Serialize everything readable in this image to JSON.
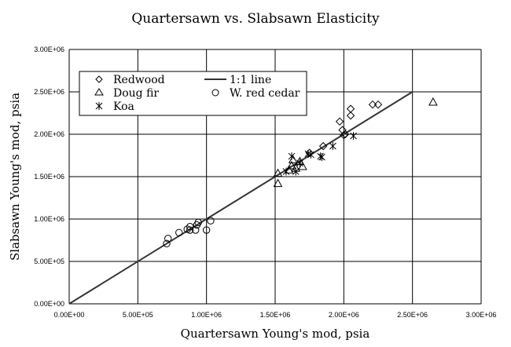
{
  "chart_data": {
    "type": "scatter",
    "title": "Quartersawn vs. Slabsawn Elasticity",
    "xlabel": "Quartersawn Young's mod, psia",
    "ylabel": "Slabsawn Young's mod, psia",
    "xlim": [
      0,
      3000000
    ],
    "ylim": [
      0,
      3000000
    ],
    "x_ticks": [
      0,
      500000,
      1000000,
      1500000,
      2000000,
      2500000,
      3000000
    ],
    "y_ticks": [
      0,
      500000,
      1000000,
      1500000,
      2000000,
      2500000,
      3000000
    ],
    "x_tick_labels": [
      "0.00E+00",
      "5.00E+05",
      "1.00E+06",
      "1.50E+06",
      "2.00E+06",
      "2.50E+06",
      "3.00E+06"
    ],
    "y_tick_labels": [
      "0.00E+00",
      "5.00E+05",
      "1.00E+06",
      "1.50E+06",
      "2.00E+06",
      "2.50E+06",
      "3.00E+06"
    ],
    "grid": true,
    "legend_position": "top-left",
    "series": [
      {
        "name": "Redwood",
        "marker": "diamond",
        "points": [
          [
            1850000,
            1860000
          ],
          [
            1970000,
            2150000
          ],
          [
            1990000,
            2050000
          ],
          [
            2010000,
            2000000
          ],
          [
            2050000,
            2300000
          ],
          [
            2050000,
            2220000
          ],
          [
            2210000,
            2350000
          ],
          [
            2250000,
            2350000
          ],
          [
            2000000,
            1990000
          ],
          [
            1750000,
            1780000
          ]
        ]
      },
      {
        "name": "Doug fir",
        "marker": "triangle",
        "points": [
          [
            1520000,
            1420000
          ],
          [
            1520000,
            1540000
          ],
          [
            1600000,
            1580000
          ],
          [
            1620000,
            1630000
          ],
          [
            1650000,
            1600000
          ],
          [
            1680000,
            1680000
          ],
          [
            1700000,
            1620000
          ],
          [
            1630000,
            1700000
          ],
          [
            2650000,
            2380000
          ]
        ]
      },
      {
        "name": "Koa",
        "marker": "star",
        "points": [
          [
            1620000,
            1740000
          ],
          [
            1740000,
            1770000
          ],
          [
            1760000,
            1760000
          ],
          [
            1830000,
            1740000
          ],
          [
            1840000,
            1730000
          ],
          [
            1920000,
            1860000
          ],
          [
            2070000,
            1980000
          ],
          [
            1650000,
            1560000
          ],
          [
            1680000,
            1660000
          ],
          [
            1580000,
            1560000
          ]
        ]
      },
      {
        "name": "W. red cedar",
        "marker": "circle",
        "points": [
          [
            710000,
            710000
          ],
          [
            720000,
            770000
          ],
          [
            800000,
            840000
          ],
          [
            860000,
            880000
          ],
          [
            880000,
            870000
          ],
          [
            880000,
            910000
          ],
          [
            920000,
            870000
          ],
          [
            930000,
            930000
          ],
          [
            940000,
            960000
          ],
          [
            1000000,
            870000
          ],
          [
            1030000,
            980000
          ]
        ]
      }
    ],
    "reference_line": {
      "name": "1:1 line",
      "points": [
        [
          0,
          0
        ],
        [
          2500000,
          2500000
        ]
      ]
    },
    "colors": {
      "line": "#333333",
      "marker": "#000000",
      "grid": "#000000",
      "background": "#ffffff"
    }
  }
}
